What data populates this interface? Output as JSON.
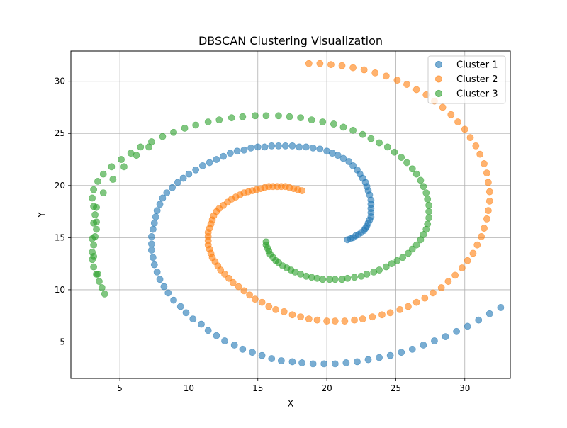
{
  "chart_data": {
    "type": "scatter",
    "title": "DBSCAN Clustering Visualization",
    "xlabel": "X",
    "ylabel": "Y",
    "xlim": [
      1.45,
      33.3
    ],
    "ylim": [
      1.5,
      32.9
    ],
    "xticks": [
      5,
      10,
      15,
      20,
      25,
      30
    ],
    "yticks": [
      5,
      10,
      15,
      20,
      25,
      30
    ],
    "grid": true,
    "legend": "top-right",
    "series": [
      {
        "name": "Cluster 1",
        "color": "#1f77b4",
        "points": [
          [
            21.5,
            14.8
          ],
          [
            21.7,
            14.9
          ],
          [
            21.9,
            15.0
          ],
          [
            22.1,
            15.2
          ],
          [
            22.3,
            15.3
          ],
          [
            22.5,
            15.5
          ],
          [
            22.7,
            15.7
          ],
          [
            22.8,
            15.9
          ],
          [
            22.9,
            16.1
          ],
          [
            23.0,
            16.4
          ],
          [
            23.1,
            16.7
          ],
          [
            23.2,
            17.0
          ],
          [
            23.2,
            17.4
          ],
          [
            23.2,
            17.8
          ],
          [
            23.2,
            18.2
          ],
          [
            23.2,
            18.6
          ],
          [
            23.1,
            19.1
          ],
          [
            23.0,
            19.5
          ],
          [
            22.9,
            19.9
          ],
          [
            22.8,
            20.3
          ],
          [
            22.6,
            20.7
          ],
          [
            22.4,
            21.1
          ],
          [
            22.2,
            21.5
          ],
          [
            21.9,
            21.9
          ],
          [
            21.6,
            22.3
          ],
          [
            21.2,
            22.6
          ],
          [
            20.8,
            22.9
          ],
          [
            20.4,
            23.1
          ],
          [
            20.0,
            23.3
          ],
          [
            19.5,
            23.5
          ],
          [
            19.0,
            23.6
          ],
          [
            18.5,
            23.7
          ],
          [
            18.0,
            23.7
          ],
          [
            17.5,
            23.8
          ],
          [
            17.0,
            23.8
          ],
          [
            16.5,
            23.8
          ],
          [
            16.0,
            23.8
          ],
          [
            15.5,
            23.7
          ],
          [
            15.0,
            23.7
          ],
          [
            14.5,
            23.6
          ],
          [
            14.0,
            23.4
          ],
          [
            13.5,
            23.3
          ],
          [
            13.0,
            23.1
          ],
          [
            12.5,
            22.8
          ],
          [
            12.0,
            22.5
          ],
          [
            11.5,
            22.2
          ],
          [
            11.0,
            21.9
          ],
          [
            10.5,
            21.5
          ],
          [
            10.0,
            21.1
          ],
          [
            9.6,
            20.7
          ],
          [
            9.2,
            20.3
          ],
          [
            8.8,
            19.8
          ],
          [
            8.4,
            19.3
          ],
          [
            8.1,
            18.8
          ],
          [
            7.9,
            18.2
          ],
          [
            7.7,
            17.6
          ],
          [
            7.6,
            17.0
          ],
          [
            7.5,
            16.4
          ],
          [
            7.4,
            15.8
          ],
          [
            7.3,
            15.1
          ],
          [
            7.3,
            14.4
          ],
          [
            7.3,
            13.8
          ],
          [
            7.4,
            13.1
          ],
          [
            7.5,
            12.4
          ],
          [
            7.7,
            11.7
          ],
          [
            7.9,
            11.0
          ],
          [
            8.2,
            10.3
          ],
          [
            8.5,
            9.7
          ],
          [
            8.9,
            9.0
          ],
          [
            9.4,
            8.4
          ],
          [
            9.8,
            7.8
          ],
          [
            10.3,
            7.2
          ],
          [
            10.9,
            6.7
          ],
          [
            11.4,
            6.1
          ],
          [
            12.0,
            5.6
          ],
          [
            12.6,
            5.1
          ],
          [
            13.3,
            4.7
          ],
          [
            13.9,
            4.3
          ],
          [
            14.6,
            4.0
          ],
          [
            15.3,
            3.7
          ],
          [
            16.0,
            3.4
          ],
          [
            16.7,
            3.2
          ],
          [
            17.5,
            3.1
          ],
          [
            18.2,
            3.0
          ],
          [
            19.0,
            2.9
          ],
          [
            19.8,
            2.9
          ],
          [
            20.6,
            2.9
          ],
          [
            21.4,
            3.0
          ],
          [
            22.2,
            3.1
          ],
          [
            23.0,
            3.3
          ],
          [
            23.8,
            3.5
          ],
          [
            24.6,
            3.7
          ],
          [
            25.4,
            4.0
          ],
          [
            26.2,
            4.3
          ],
          [
            27.0,
            4.7
          ],
          [
            27.8,
            5.1
          ],
          [
            28.6,
            5.5
          ],
          [
            29.4,
            6.0
          ],
          [
            30.2,
            6.5
          ],
          [
            31.0,
            7.1
          ],
          [
            31.8,
            7.7
          ],
          [
            32.6,
            8.3
          ]
        ]
      },
      {
        "name": "Cluster 2",
        "color": "#ff7f0e",
        "points": [
          [
            18.2,
            19.5
          ],
          [
            17.9,
            19.6
          ],
          [
            17.6,
            19.7
          ],
          [
            17.3,
            19.8
          ],
          [
            17.0,
            19.9
          ],
          [
            16.7,
            19.9
          ],
          [
            16.4,
            19.9
          ],
          [
            16.1,
            19.9
          ],
          [
            15.8,
            19.9
          ],
          [
            15.5,
            19.8
          ],
          [
            15.2,
            19.7
          ],
          [
            14.9,
            19.6
          ],
          [
            14.6,
            19.5
          ],
          [
            14.3,
            19.4
          ],
          [
            14.0,
            19.3
          ],
          [
            13.7,
            19.1
          ],
          [
            13.4,
            18.9
          ],
          [
            13.1,
            18.7
          ],
          [
            12.8,
            18.4
          ],
          [
            12.5,
            18.1
          ],
          [
            12.2,
            17.8
          ],
          [
            12.0,
            17.5
          ],
          [
            11.8,
            17.1
          ],
          [
            11.7,
            16.7
          ],
          [
            11.6,
            16.3
          ],
          [
            11.5,
            15.9
          ],
          [
            11.4,
            15.5
          ],
          [
            11.4,
            15.1
          ],
          [
            11.4,
            14.7
          ],
          [
            11.4,
            14.3
          ],
          [
            11.5,
            13.9
          ],
          [
            11.6,
            13.5
          ],
          [
            11.7,
            13.1
          ],
          [
            11.9,
            12.7
          ],
          [
            12.1,
            12.3
          ],
          [
            12.3,
            11.9
          ],
          [
            12.6,
            11.5
          ],
          [
            12.9,
            11.1
          ],
          [
            13.2,
            10.7
          ],
          [
            13.6,
            10.3
          ],
          [
            14.0,
            9.9
          ],
          [
            14.4,
            9.5
          ],
          [
            14.8,
            9.1
          ],
          [
            15.3,
            8.8
          ],
          [
            15.8,
            8.4
          ],
          [
            16.3,
            8.1
          ],
          [
            16.9,
            7.9
          ],
          [
            17.5,
            7.6
          ],
          [
            18.1,
            7.4
          ],
          [
            18.7,
            7.2
          ],
          [
            19.3,
            7.1
          ],
          [
            20.0,
            7.0
          ],
          [
            20.6,
            7.0
          ],
          [
            21.3,
            7.0
          ],
          [
            22.0,
            7.1
          ],
          [
            22.6,
            7.2
          ],
          [
            23.3,
            7.4
          ],
          [
            24.0,
            7.6
          ],
          [
            24.6,
            7.8
          ],
          [
            25.3,
            8.1
          ],
          [
            25.9,
            8.4
          ],
          [
            26.5,
            8.8
          ],
          [
            27.1,
            9.2
          ],
          [
            27.7,
            9.7
          ],
          [
            28.3,
            10.2
          ],
          [
            28.8,
            10.8
          ],
          [
            29.3,
            11.4
          ],
          [
            29.8,
            12.1
          ],
          [
            30.2,
            12.8
          ],
          [
            30.6,
            13.5
          ],
          [
            30.9,
            14.3
          ],
          [
            31.2,
            15.1
          ],
          [
            31.4,
            15.9
          ],
          [
            31.6,
            16.8
          ],
          [
            31.7,
            17.6
          ],
          [
            31.8,
            18.5
          ],
          [
            31.8,
            19.4
          ],
          [
            31.7,
            20.3
          ],
          [
            31.6,
            21.2
          ],
          [
            31.4,
            22.1
          ],
          [
            31.1,
            23.0
          ],
          [
            30.8,
            23.8
          ],
          [
            30.4,
            24.6
          ],
          [
            30.0,
            25.4
          ],
          [
            29.5,
            26.1
          ],
          [
            29.0,
            26.8
          ],
          [
            28.4,
            27.5
          ],
          [
            27.8,
            28.1
          ],
          [
            27.2,
            28.7
          ],
          [
            26.5,
            29.2
          ],
          [
            25.8,
            29.7
          ],
          [
            25.1,
            30.1
          ],
          [
            24.3,
            30.5
          ],
          [
            23.5,
            30.8
          ],
          [
            22.7,
            31.1
          ],
          [
            21.9,
            31.3
          ],
          [
            21.1,
            31.5
          ],
          [
            20.3,
            31.6
          ],
          [
            19.5,
            31.7
          ],
          [
            18.7,
            31.7
          ]
        ]
      },
      {
        "name": "Cluster 3",
        "color": "#2ca02c",
        "points": [
          [
            15.6,
            14.6
          ],
          [
            15.6,
            14.3
          ],
          [
            15.7,
            14.0
          ],
          [
            15.8,
            13.7
          ],
          [
            15.9,
            13.4
          ],
          [
            16.1,
            13.1
          ],
          [
            16.3,
            12.8
          ],
          [
            16.5,
            12.6
          ],
          [
            16.8,
            12.3
          ],
          [
            17.1,
            12.1
          ],
          [
            17.4,
            11.9
          ],
          [
            17.7,
            11.7
          ],
          [
            18.1,
            11.5
          ],
          [
            18.5,
            11.3
          ],
          [
            18.9,
            11.2
          ],
          [
            19.3,
            11.1
          ],
          [
            19.7,
            11.0
          ],
          [
            20.2,
            11.0
          ],
          [
            20.6,
            11.0
          ],
          [
            21.1,
            11.0
          ],
          [
            21.5,
            11.1
          ],
          [
            22.0,
            11.2
          ],
          [
            22.5,
            11.3
          ],
          [
            22.9,
            11.5
          ],
          [
            23.4,
            11.7
          ],
          [
            23.8,
            11.9
          ],
          [
            24.3,
            12.2
          ],
          [
            24.7,
            12.5
          ],
          [
            25.1,
            12.8
          ],
          [
            25.5,
            13.1
          ],
          [
            25.9,
            13.5
          ],
          [
            26.2,
            13.9
          ],
          [
            26.5,
            14.3
          ],
          [
            26.8,
            14.8
          ],
          [
            27.0,
            15.3
          ],
          [
            27.2,
            15.8
          ],
          [
            27.3,
            16.3
          ],
          [
            27.4,
            16.9
          ],
          [
            27.4,
            17.5
          ],
          [
            27.4,
            18.1
          ],
          [
            27.3,
            18.7
          ],
          [
            27.2,
            19.3
          ],
          [
            27.0,
            19.9
          ],
          [
            26.8,
            20.5
          ],
          [
            26.5,
            21.1
          ],
          [
            26.2,
            21.6
          ],
          [
            25.8,
            22.2
          ],
          [
            25.4,
            22.7
          ],
          [
            24.9,
            23.2
          ],
          [
            24.4,
            23.7
          ],
          [
            23.8,
            24.1
          ],
          [
            23.2,
            24.5
          ],
          [
            22.6,
            24.9
          ],
          [
            21.9,
            25.3
          ],
          [
            21.2,
            25.6
          ],
          [
            20.5,
            25.9
          ],
          [
            19.7,
            26.1
          ],
          [
            18.9,
            26.3
          ],
          [
            18.1,
            26.5
          ],
          [
            17.3,
            26.6
          ],
          [
            16.5,
            26.7
          ],
          [
            15.6,
            26.7
          ],
          [
            14.8,
            26.7
          ],
          [
            13.9,
            26.6
          ],
          [
            13.1,
            26.5
          ],
          [
            12.2,
            26.3
          ],
          [
            11.4,
            26.1
          ],
          [
            10.5,
            25.8
          ],
          [
            9.7,
            25.5
          ],
          [
            8.9,
            25.1
          ],
          [
            8.1,
            24.7
          ],
          [
            7.3,
            24.2
          ],
          [
            6.5,
            23.7
          ],
          [
            5.8,
            23.1
          ],
          [
            5.1,
            22.5
          ],
          [
            4.4,
            21.8
          ],
          [
            3.8,
            21.1
          ],
          [
            3.4,
            20.4
          ],
          [
            3.1,
            19.6
          ],
          [
            3.0,
            18.8
          ],
          [
            3.1,
            18.0
          ],
          [
            3.2,
            17.2
          ],
          [
            3.3,
            16.5
          ],
          [
            3.3,
            15.8
          ],
          [
            3.2,
            15.1
          ],
          [
            3.1,
            14.3
          ],
          [
            3.0,
            13.6
          ],
          [
            3.0,
            12.9
          ],
          [
            3.1,
            12.2
          ],
          [
            3.3,
            11.5
          ],
          [
            3.5,
            10.8
          ],
          [
            3.7,
            10.2
          ],
          [
            3.9,
            9.6
          ],
          [
            3.4,
            11.5
          ],
          [
            3.1,
            13.2
          ],
          [
            3.0,
            14.9
          ],
          [
            3.1,
            16.4
          ],
          [
            3.3,
            17.9
          ],
          [
            3.8,
            19.3
          ],
          [
            4.5,
            20.6
          ],
          [
            5.3,
            21.8
          ],
          [
            6.2,
            22.9
          ],
          [
            7.1,
            23.7
          ]
        ]
      }
    ]
  }
}
